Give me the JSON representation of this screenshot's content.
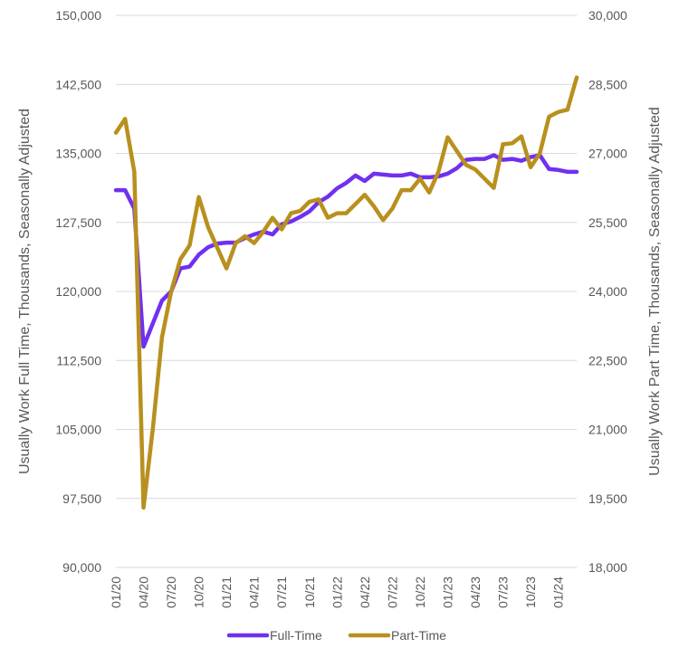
{
  "chart_data": {
    "type": "line",
    "x": [
      "01/20",
      "02/20",
      "03/20",
      "04/20",
      "05/20",
      "06/20",
      "07/20",
      "08/20",
      "09/20",
      "10/20",
      "11/20",
      "12/20",
      "01/21",
      "02/21",
      "03/21",
      "04/21",
      "05/21",
      "06/21",
      "07/21",
      "08/21",
      "09/21",
      "10/21",
      "11/21",
      "12/21",
      "01/22",
      "02/22",
      "03/22",
      "04/22",
      "05/22",
      "06/22",
      "07/22",
      "08/22",
      "09/22",
      "10/22",
      "11/22",
      "12/22",
      "01/23",
      "02/23",
      "03/23",
      "04/23",
      "05/23",
      "06/23",
      "07/23",
      "08/23",
      "09/23",
      "10/23",
      "11/23",
      "12/23",
      "01/24",
      "02/24",
      "03/24"
    ],
    "x_tick_labels": [
      "01/20",
      "04/20",
      "07/20",
      "10/20",
      "01/21",
      "04/21",
      "07/21",
      "10/21",
      "01/22",
      "04/22",
      "07/22",
      "10/22",
      "01/23",
      "04/23",
      "07/23",
      "10/23",
      "01/24"
    ],
    "y_left": {
      "label": "Usually Work Full Time, Thousands, Seasonally Adjusted",
      "ylim": [
        90000,
        150000
      ],
      "ticks": [
        "90,000",
        "97,500",
        "105,000",
        "112,500",
        "120,000",
        "127,500",
        "135,000",
        "142,500",
        "150,000"
      ]
    },
    "y_right": {
      "label": "Usually Work Part Time, Thousands, Seasonally Adjusted",
      "ylim": [
        18000,
        30000
      ],
      "ticks": [
        "18,000",
        "19,500",
        "21,000",
        "22,500",
        "24,000",
        "25,500",
        "27,000",
        "28,500",
        "30,000"
      ]
    },
    "series": [
      {
        "name": "Full-Time",
        "axis": "left",
        "color": "#7030f0",
        "values": [
          131000,
          131000,
          129000,
          114000,
          116500,
          119000,
          120000,
          122500,
          122700,
          124000,
          124800,
          125200,
          125300,
          125300,
          125800,
          126200,
          126500,
          126200,
          127300,
          127600,
          128100,
          128700,
          129700,
          130300,
          131200,
          131800,
          132600,
          132000,
          132800,
          132700,
          132600,
          132600,
          132800,
          132400,
          132400,
          132500,
          132800,
          133400,
          134300,
          134400,
          134400,
          134800,
          134300,
          134400,
          134200,
          134600,
          134800,
          133300,
          133200,
          133000,
          133000
        ]
      },
      {
        "name": "Part-Time",
        "axis": "right",
        "color": "#b8901e",
        "values": [
          27450,
          27750,
          26600,
          19300,
          21000,
          23000,
          24000,
          24700,
          25000,
          26050,
          25400,
          24950,
          24500,
          25050,
          25200,
          25050,
          25300,
          25600,
          25350,
          25700,
          25750,
          25950,
          26000,
          25600,
          25700,
          25700,
          25900,
          26100,
          25850,
          25550,
          25800,
          26200,
          26200,
          26450,
          26150,
          26600,
          27350,
          27050,
          26750,
          26650,
          26450,
          26250,
          27200,
          27220,
          27370,
          26700,
          27000,
          27800,
          27900,
          27950,
          28650
        ]
      }
    ],
    "legend": {
      "placement": "bottom"
    },
    "grid": true
  }
}
